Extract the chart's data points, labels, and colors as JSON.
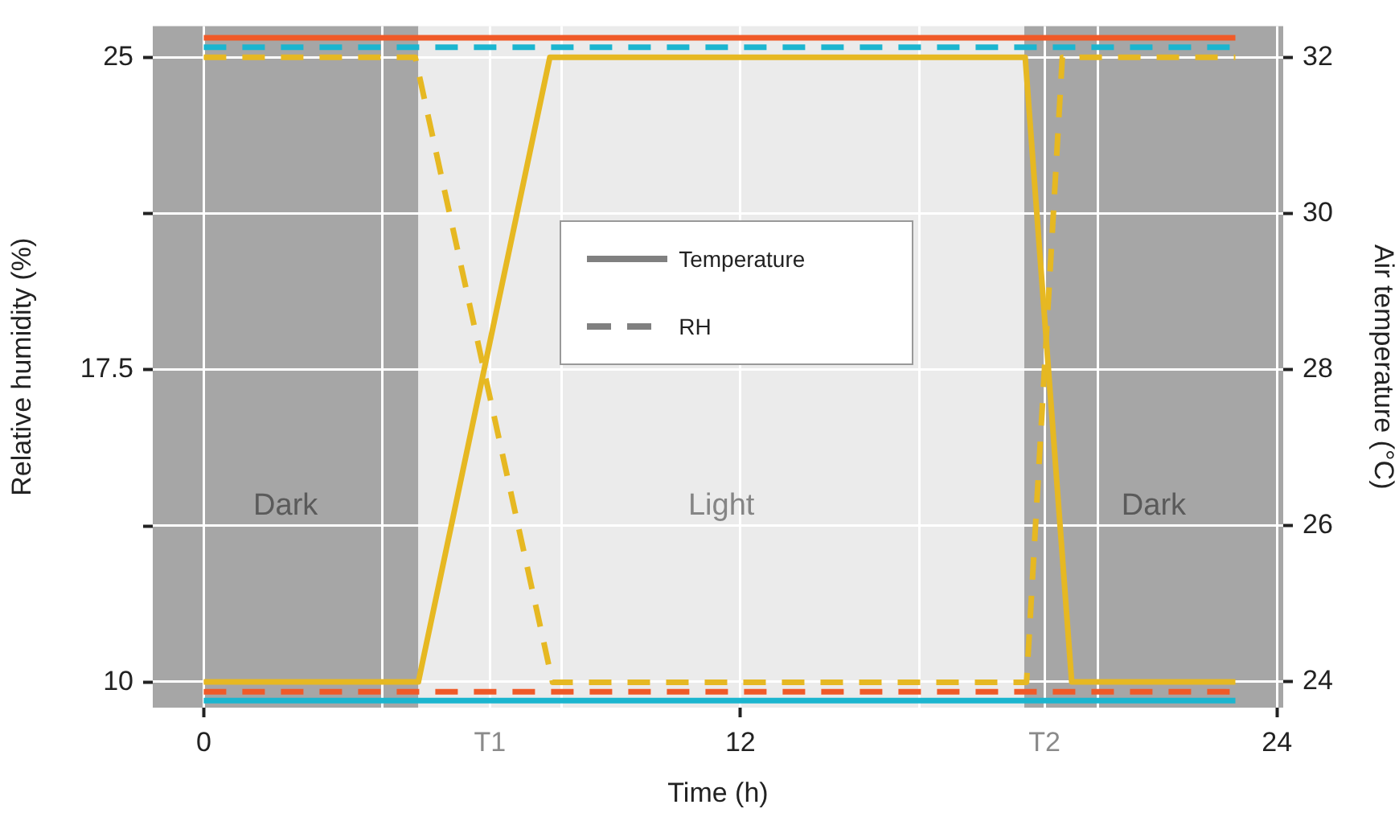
{
  "chart_data": {
    "type": "line",
    "xlabel": "Time (h)",
    "ylabel": "Relative humidity (%)",
    "y2label": "Air temperature (°C)",
    "xlim": [
      -1.14,
      24.14
    ],
    "xticks": [
      0,
      {
        "value": 4,
        "label": null
      },
      {
        "value": 6.4,
        "label": "T1"
      },
      {
        "value": 8,
        "label": null
      },
      12,
      {
        "value": 16,
        "label": null
      },
      {
        "value": 18.8,
        "label": "T2"
      },
      {
        "value": 20,
        "label": null
      },
      24
    ],
    "ylim": [
      9.39,
      25.75
    ],
    "yticks": [
      10,
      {
        "value": 13.75,
        "label": null
      },
      17.5,
      {
        "value": 21.25,
        "label": null
      },
      25
    ],
    "y2lim": [
      23.67,
      32.4
    ],
    "y2ticks": [
      24,
      26,
      28,
      30,
      32
    ],
    "grid": true,
    "marker": "none",
    "bands": [
      {
        "axis": "x",
        "from": -1.14,
        "to": 4.8,
        "label": "Dark",
        "color": "#a6a6a6"
      },
      {
        "axis": "x",
        "from": 4.8,
        "to": 18.35,
        "label": "Light",
        "color": "#ebebeb"
      },
      {
        "axis": "x",
        "from": 18.35,
        "to": 24.14,
        "label": "Dark",
        "color": "#a6a6a6"
      }
    ],
    "annotations": [
      "Temperature",
      "RH"
    ],
    "series": [
      {
        "color": "#f05a28",
        "axis": "y2",
        "line_style": "solid",
        "x": [
          0,
          23.07
        ],
        "values": [
          32.25,
          32.25
        ]
      },
      {
        "color": "#1bb5cf",
        "axis": "y2",
        "line_style": "solid",
        "x": [
          0,
          23.07
        ],
        "values": [
          23.76,
          23.76
        ]
      },
      {
        "color": "#e6b822",
        "axis": "y2",
        "line_style": "solid",
        "x": [
          0,
          4.8,
          7.74,
          18.37,
          19.41,
          23.07
        ],
        "values": [
          24,
          24,
          32,
          32,
          24,
          24
        ]
      },
      {
        "color": "#f05a28",
        "axis": "y",
        "line_style": "dashed",
        "x": [
          0,
          23.07
        ],
        "values": [
          9.77,
          9.77
        ]
      },
      {
        "color": "#1bb5cf",
        "axis": "y",
        "line_style": "dashed",
        "x": [
          0,
          23.07
        ],
        "values": [
          25.24,
          25.24
        ]
      },
      {
        "color": "#e6b822",
        "axis": "y",
        "line_style": "dashed",
        "x": [
          0,
          4.73,
          7.8,
          18.4,
          19.2,
          23.07
        ],
        "values": [
          25,
          25,
          10,
          10,
          25,
          25
        ]
      }
    ]
  }
}
